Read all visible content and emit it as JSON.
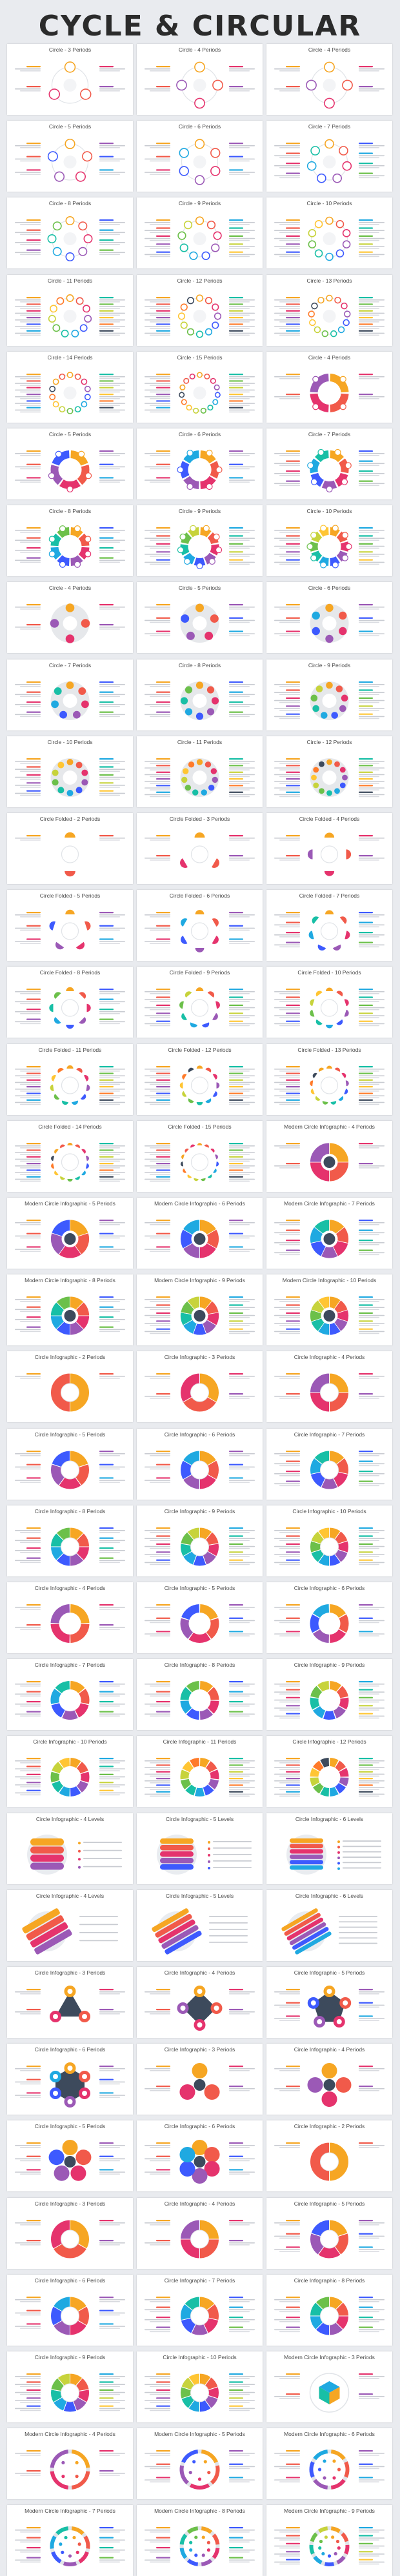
{
  "heading": "CYCLE & CIRCULAR",
  "palette": [
    "#f6a623",
    "#f15a4a",
    "#e5336d",
    "#9b59b6",
    "#3d5afe",
    "#1fa9e1",
    "#18bfa6",
    "#6cc04a",
    "#c7d33b",
    "#ffc533",
    "#ff7a29",
    "#3d4a5c"
  ],
  "slides": [
    {
      "title": "Circle - 3 Periods",
      "style": "circle",
      "n": 3
    },
    {
      "title": "Circle - 4 Periods",
      "style": "circle",
      "n": 4
    },
    {
      "title": "Circle - 4 Periods",
      "style": "circle",
      "n": 4
    },
    {
      "title": "Circle - 5 Periods",
      "style": "circle",
      "n": 5
    },
    {
      "title": "Circle - 6 Periods",
      "style": "circle",
      "n": 6
    },
    {
      "title": "Circle - 7 Periods",
      "style": "circle",
      "n": 7
    },
    {
      "title": "Circle - 8 Periods",
      "style": "circle",
      "n": 8
    },
    {
      "title": "Circle - 9 Periods",
      "style": "circle",
      "n": 9
    },
    {
      "title": "Circle - 10 Periods",
      "style": "circle",
      "n": 10
    },
    {
      "title": "Circle - 11 Periods",
      "style": "circle",
      "n": 11
    },
    {
      "title": "Circle - 12 Periods",
      "style": "circle",
      "n": 12
    },
    {
      "title": "Circle - 13 Periods",
      "style": "circle",
      "n": 13
    },
    {
      "title": "Circle - 14 Periods",
      "style": "circle",
      "n": 14
    },
    {
      "title": "Circle - 15 Periods",
      "style": "circle",
      "n": 15
    },
    {
      "title": "Circle - 4 Periods",
      "style": "ring",
      "n": 4
    },
    {
      "title": "Circle - 5 Periods",
      "style": "ring",
      "n": 5
    },
    {
      "title": "Circle - 6 Periods",
      "style": "ring",
      "n": 6
    },
    {
      "title": "Circle - 7 Periods",
      "style": "ring",
      "n": 7
    },
    {
      "title": "Circle - 8 Periods",
      "style": "ring",
      "n": 8
    },
    {
      "title": "Circle - 9 Periods",
      "style": "ring",
      "n": 9
    },
    {
      "title": "Circle - 10 Periods",
      "style": "ring",
      "n": 10
    },
    {
      "title": "Circle - 4 Periods",
      "style": "gear",
      "n": 4
    },
    {
      "title": "Circle - 5 Periods",
      "style": "gear",
      "n": 5
    },
    {
      "title": "Circle - 6 Periods",
      "style": "gear",
      "n": 6
    },
    {
      "title": "Circle - 7 Periods",
      "style": "gear",
      "n": 7
    },
    {
      "title": "Circle - 8 Periods",
      "style": "gear",
      "n": 8
    },
    {
      "title": "Circle - 9 Periods",
      "style": "gear",
      "n": 9
    },
    {
      "title": "Circle - 10 Periods",
      "style": "gear",
      "n": 10
    },
    {
      "title": "Circle - 11 Periods",
      "style": "gear",
      "n": 11
    },
    {
      "title": "Circle - 12 Periods",
      "style": "gear",
      "n": 12
    },
    {
      "title": "Circle Folded - 2 Periods",
      "style": "folded",
      "n": 2
    },
    {
      "title": "Circle Folded - 3 Periods",
      "style": "folded",
      "n": 3
    },
    {
      "title": "Circle Folded - 4 Periods",
      "style": "folded",
      "n": 4
    },
    {
      "title": "Circle Folded - 5 Periods",
      "style": "folded",
      "n": 5
    },
    {
      "title": "Circle Folded - 6 Periods",
      "style": "folded",
      "n": 6
    },
    {
      "title": "Circle Folded - 7 Periods",
      "style": "folded",
      "n": 7
    },
    {
      "title": "Circle Folded - 8 Periods",
      "style": "folded",
      "n": 8
    },
    {
      "title": "Circle Folded - 9 Periods",
      "style": "folded",
      "n": 9
    },
    {
      "title": "Circle Folded - 10 Periods",
      "style": "folded",
      "n": 10
    },
    {
      "title": "Circle Folded - 11 Periods",
      "style": "folded",
      "n": 11
    },
    {
      "title": "Circle Folded - 12 Periods",
      "style": "folded",
      "n": 12
    },
    {
      "title": "Circle Folded - 13 Periods",
      "style": "folded",
      "n": 13
    },
    {
      "title": "Circle Folded - 14 Periods",
      "style": "folded",
      "n": 14
    },
    {
      "title": "Circle Folded - 15 Periods",
      "style": "folded",
      "n": 15
    },
    {
      "title": "Modern Circle Infographic - 4 Periods",
      "style": "modern",
      "n": 4
    },
    {
      "title": "Modern Circle Infographic - 5 Periods",
      "style": "modern",
      "n": 5
    },
    {
      "title": "Modern Circle Infographic - 6 Periods",
      "style": "modern",
      "n": 6
    },
    {
      "title": "Modern Circle Infographic - 7 Periods",
      "style": "modern",
      "n": 7
    },
    {
      "title": "Modern Circle Infographic - 8 Periods",
      "style": "modern",
      "n": 8
    },
    {
      "title": "Modern Circle Infographic - 9 Periods",
      "style": "modern",
      "n": 9
    },
    {
      "title": "Modern Circle Infographic - 10 Periods",
      "style": "modern",
      "n": 10
    },
    {
      "title": "Circle Infographic - 2 Periods",
      "style": "pie",
      "n": 2
    },
    {
      "title": "Circle Infographic - 3 Periods",
      "style": "pie",
      "n": 3
    },
    {
      "title": "Circle Infographic - 4 Periods",
      "style": "pie",
      "n": 4
    },
    {
      "title": "Circle Infographic - 5 Periods",
      "style": "pie",
      "n": 5
    },
    {
      "title": "Circle Infographic - 6 Periods",
      "style": "pie",
      "n": 6
    },
    {
      "title": "Circle Infographic - 7 Periods",
      "style": "pie",
      "n": 7
    },
    {
      "title": "Circle Infographic - 8 Periods",
      "style": "pie",
      "n": 8
    },
    {
      "title": "Circle Infographic - 9 Periods",
      "style": "pie",
      "n": 9
    },
    {
      "title": "Circle Infographic - 10 Periods",
      "style": "pie",
      "n": 10
    },
    {
      "title": "Circle Infographic - 4 Periods",
      "style": "donut",
      "n": 4
    },
    {
      "title": "Circle Infographic - 5 Periods",
      "style": "donut",
      "n": 5
    },
    {
      "title": "Circle Infographic - 6 Periods",
      "style": "donut",
      "n": 6
    },
    {
      "title": "Circle Infographic - 7 Periods",
      "style": "donut",
      "n": 7
    },
    {
      "title": "Circle Infographic - 8 Periods",
      "style": "donut",
      "n": 8
    },
    {
      "title": "Circle Infographic - 9 Periods",
      "style": "donut",
      "n": 9
    },
    {
      "title": "Circle Infographic - 10 Periods",
      "style": "donut",
      "n": 10
    },
    {
      "title": "Circle Infographic - 11 Periods",
      "style": "donut",
      "n": 11
    },
    {
      "title": "Circle Infographic - 12 Periods",
      "style": "donut",
      "n": 12
    },
    {
      "title": "Circle Infographic - 4 Levels",
      "style": "levels",
      "n": 4
    },
    {
      "title": "Circle Infographic - 5 Levels",
      "style": "levels",
      "n": 5
    },
    {
      "title": "Circle Infographic - 6 Levels",
      "style": "levels",
      "n": 6
    },
    {
      "title": "Circle Infographic - 4 Levels",
      "style": "diag",
      "n": 4
    },
    {
      "title": "Circle Infographic - 5 Levels",
      "style": "diag",
      "n": 5
    },
    {
      "title": "Circle Infographic - 6 Levels",
      "style": "diag",
      "n": 6
    },
    {
      "title": "Circle Infographic - 3 Periods",
      "style": "polygon",
      "n": 3
    },
    {
      "title": "Circle Infographic - 4 Periods",
      "style": "polygon",
      "n": 4
    },
    {
      "title": "Circle Infographic - 5 Periods",
      "style": "polygon",
      "n": 5
    },
    {
      "title": "Circle Infographic - 6 Periods",
      "style": "polygon",
      "n": 6
    },
    {
      "title": "Circle Infographic - 3 Periods",
      "style": "bubbles",
      "n": 3
    },
    {
      "title": "Circle Infographic - 4 Periods",
      "style": "bubbles",
      "n": 4
    },
    {
      "title": "Circle Infographic - 5 Periods",
      "style": "bubbles",
      "n": 5
    },
    {
      "title": "Circle Infographic - 6 Periods",
      "style": "bubbles",
      "n": 6
    },
    {
      "title": "Circle Infographic - 2 Periods",
      "style": "pie",
      "n": 2
    },
    {
      "title": "Circle Infographic - 3 Periods",
      "style": "pie",
      "n": 3
    },
    {
      "title": "Circle Infographic - 4 Periods",
      "style": "pie",
      "n": 4
    },
    {
      "title": "Circle Infographic - 5 Periods",
      "style": "pie",
      "n": 5
    },
    {
      "title": "Circle Infographic - 6 Periods",
      "style": "pie",
      "n": 6
    },
    {
      "title": "Circle Infographic - 7 Periods",
      "style": "pie",
      "n": 7
    },
    {
      "title": "Circle Infographic - 8 Periods",
      "style": "pie",
      "n": 8
    },
    {
      "title": "Circle Infographic - 9 Periods",
      "style": "pie",
      "n": 9
    },
    {
      "title": "Circle Infographic - 10 Periods",
      "style": "pie",
      "n": 10
    },
    {
      "title": "Modern Circle Infographic - 3 Periods",
      "style": "cube",
      "n": 3
    },
    {
      "title": "Modern Circle Infographic - 4 Periods",
      "style": "outline",
      "n": 4
    },
    {
      "title": "Modern Circle Infographic - 5 Periods",
      "style": "outline",
      "n": 5
    },
    {
      "title": "Modern Circle Infographic - 6 Periods",
      "style": "outline",
      "n": 6
    },
    {
      "title": "Modern Circle Infographic - 7 Periods",
      "style": "outline",
      "n": 7
    },
    {
      "title": "Modern Circle Infographic - 8 Periods",
      "style": "outline",
      "n": 8
    },
    {
      "title": "Modern Circle Infographic - 9 Periods",
      "style": "outline",
      "n": 9
    }
  ]
}
